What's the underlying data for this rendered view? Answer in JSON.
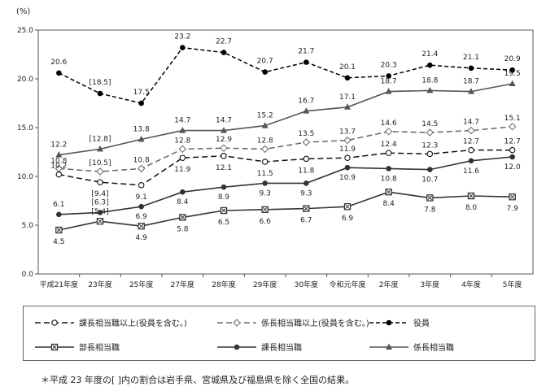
{
  "chart_data": {
    "type": "line",
    "y_unit": "(%)",
    "ylim": [
      0,
      25
    ],
    "y_ticks": [
      "0.0",
      "5.0",
      "10.0",
      "15.0",
      "20.0",
      "25.0"
    ],
    "categories": [
      "平成21年度",
      "23年度",
      "25年度",
      "27年度",
      "28年度",
      "29年度",
      "30年度",
      "令和元年度",
      "2年度",
      "3年度",
      "4年度",
      "5年度"
    ],
    "series": [
      {
        "key": "kakaricho",
        "name": "係長相当職",
        "values": [
          12.2,
          12.8,
          13.8,
          14.7,
          14.7,
          15.2,
          16.7,
          17.1,
          18.7,
          18.8,
          18.7,
          19.5
        ],
        "labels": [
          "12.2",
          "[12.8]",
          "13.8",
          "14.7",
          "14.7",
          "15.2",
          "16.7",
          "17.1",
          "18.7",
          "18.8",
          "18.7",
          "19.5"
        ],
        "color": "#555555",
        "dash": "none",
        "marker": "triangle"
      },
      {
        "key": "kakaricho_ue",
        "name": "係長相当職以上(役員を含む。)",
        "values": [
          10.8,
          10.5,
          10.8,
          12.8,
          12.9,
          12.8,
          13.5,
          13.7,
          14.6,
          14.5,
          14.7,
          15.1
        ],
        "labels": [
          "10.8",
          "[10.5]",
          "10.8",
          "12.8",
          "12.9",
          "12.8",
          "13.5",
          "13.7",
          "14.6",
          "14.5",
          "14.7",
          "15.1"
        ],
        "color": "#666666",
        "dash": "7,4",
        "marker": "diamond"
      },
      {
        "key": "kacho_ue",
        "name": "課長相当職以上(役員を含む。)",
        "values": [
          10.2,
          9.4,
          9.1,
          11.9,
          12.1,
          11.5,
          11.8,
          11.9,
          12.4,
          12.3,
          12.7,
          12.7
        ],
        "labels": [
          "10.2",
          "[9.4]",
          "9.1",
          "11.9",
          "12.1",
          "11.5",
          "11.8",
          "11.9",
          "12.4",
          "12.3",
          "12.7",
          "12.7"
        ],
        "color": "#111111",
        "dash": "7,4",
        "marker": "circle-open"
      },
      {
        "key": "kacho",
        "name": "課長相当職",
        "values": [
          6.1,
          6.3,
          6.9,
          8.4,
          8.9,
          9.3,
          9.3,
          10.9,
          10.8,
          10.7,
          11.6,
          12.0
        ],
        "labels": [
          "6.1",
          "[6.3]",
          "6.9",
          "8.4",
          "8.9",
          "9.3",
          "9.3",
          "10.9",
          "10.8",
          "10.7",
          "11.6",
          "12.0"
        ],
        "color": "#333333",
        "dash": "none",
        "marker": "circle-filled"
      },
      {
        "key": "bucho",
        "name": "部長相当職",
        "values": [
          4.5,
          5.4,
          4.9,
          5.8,
          6.5,
          6.6,
          6.7,
          6.9,
          8.4,
          7.8,
          8.0,
          7.9
        ],
        "labels": [
          "4.5",
          "[5.4]",
          "4.9",
          "5.8",
          "6.5",
          "6.6",
          "6.7",
          "6.9",
          "8.4",
          "7.8",
          "8.0",
          "7.9"
        ],
        "color": "#333333",
        "dash": "none",
        "marker": "square-x"
      },
      {
        "key": "yakuin",
        "name": "役員",
        "values": [
          20.6,
          18.5,
          17.5,
          23.2,
          22.7,
          20.7,
          21.7,
          20.1,
          20.3,
          21.4,
          21.1,
          20.9
        ],
        "labels": [
          "20.6",
          "[18.5]",
          "17.5",
          "23.2",
          "22.7",
          "20.7",
          "21.7",
          "20.1",
          "20.3",
          "21.4",
          "21.1",
          "20.9"
        ],
        "color": "#000000",
        "dash": "5,3",
        "marker": "circle-filled"
      }
    ],
    "legend": [
      [
        "kacho_ue",
        "kakaricho_ue",
        "yakuin"
      ],
      [
        "bucho",
        "kacho",
        "kakaricho"
      ]
    ]
  },
  "note": "＊平成 23 年度の[ ]内の割合は岩手県、宮城県及び福島県を除く全国の結果。"
}
